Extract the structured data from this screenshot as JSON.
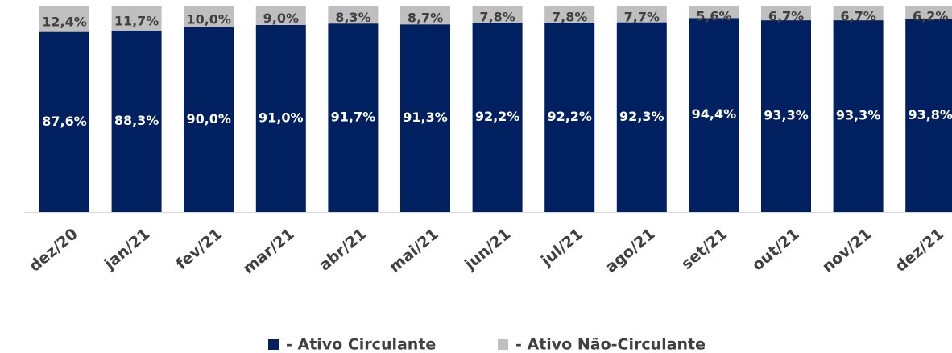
{
  "chart_data": {
    "type": "stacked_bar",
    "categories": [
      "dez/20",
      "jan/21",
      "fev/21",
      "mar/21",
      "abr/21",
      "mai/21",
      "jun/21",
      "jul/21",
      "ago/21",
      "set/21",
      "out/21",
      "nov/21",
      "dez/21"
    ],
    "ylim": [
      0,
      100
    ],
    "legend": "bottom",
    "series": [
      {
        "name": "- Ativo Circulante",
        "color": "#002060",
        "values": [
          87.6,
          88.3,
          90.0,
          91.0,
          91.7,
          91.3,
          92.2,
          92.2,
          92.3,
          94.4,
          93.3,
          93.3,
          93.8
        ],
        "value_labels": [
          "87,6%",
          "88,3%",
          "90,0%",
          "91,0%",
          "91,7%",
          "91,3%",
          "92,2%",
          "92,2%",
          "92,3%",
          "94,4%",
          "93,3%",
          "93,3%",
          "93,8%"
        ]
      },
      {
        "name": "- Ativo Não-Circulante",
        "color": "#bfbfbf",
        "values": [
          12.4,
          11.7,
          10.0,
          9.0,
          8.3,
          8.7,
          7.8,
          7.8,
          7.7,
          5.6,
          6.7,
          6.7,
          6.2
        ],
        "value_labels": [
          "12,4%",
          "11,7%",
          "10,0%",
          "9,0%",
          "8,3%",
          "8,7%",
          "7,8%",
          "7,8%",
          "7,7%",
          "5,6%",
          "6,7%",
          "6,7%",
          "6,2%"
        ]
      }
    ]
  }
}
